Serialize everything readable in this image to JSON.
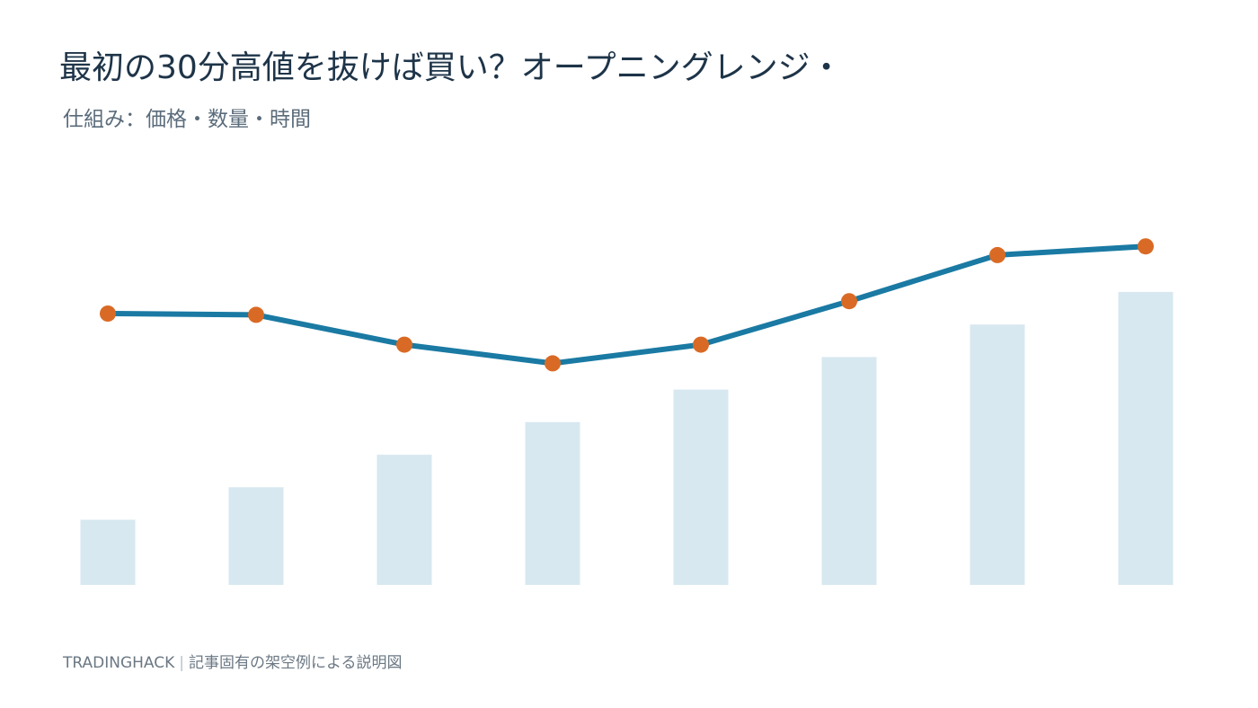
{
  "title": "最初の30分高値を抜けば買い？オープニングレンジ・",
  "subtitle": "仕組み：価格・数量・時間",
  "footer": {
    "brand": "TRADINGHACK",
    "separator": "|",
    "note": "記事固有の架空例による説明図"
  },
  "colors": {
    "line": "#1a7aa3",
    "marker": "#d96a25",
    "bar": "#d7e8f0",
    "title": "#1e3448",
    "subtitle": "#5a6b7a",
    "background": "#ffffff"
  },
  "chart_data": {
    "type": "line",
    "title": "",
    "xlabel": "",
    "ylabel": "",
    "grid": false,
    "legend": "none",
    "x": [
      1,
      2,
      3,
      4,
      5,
      6,
      7,
      8
    ],
    "series": [
      {
        "type": "line",
        "axis": "price",
        "values": [
          101.8,
          101.7,
          99.3,
          97.8,
          99.3,
          102.8,
          106.5,
          107.2
        ],
        "ylim": [
          80,
          114
        ],
        "markers": true
      },
      {
        "type": "bar",
        "axis": "volume",
        "values": [
          2,
          3,
          4,
          5,
          6,
          7,
          8,
          9
        ],
        "ylim": [
          0,
          13
        ]
      }
    ]
  }
}
